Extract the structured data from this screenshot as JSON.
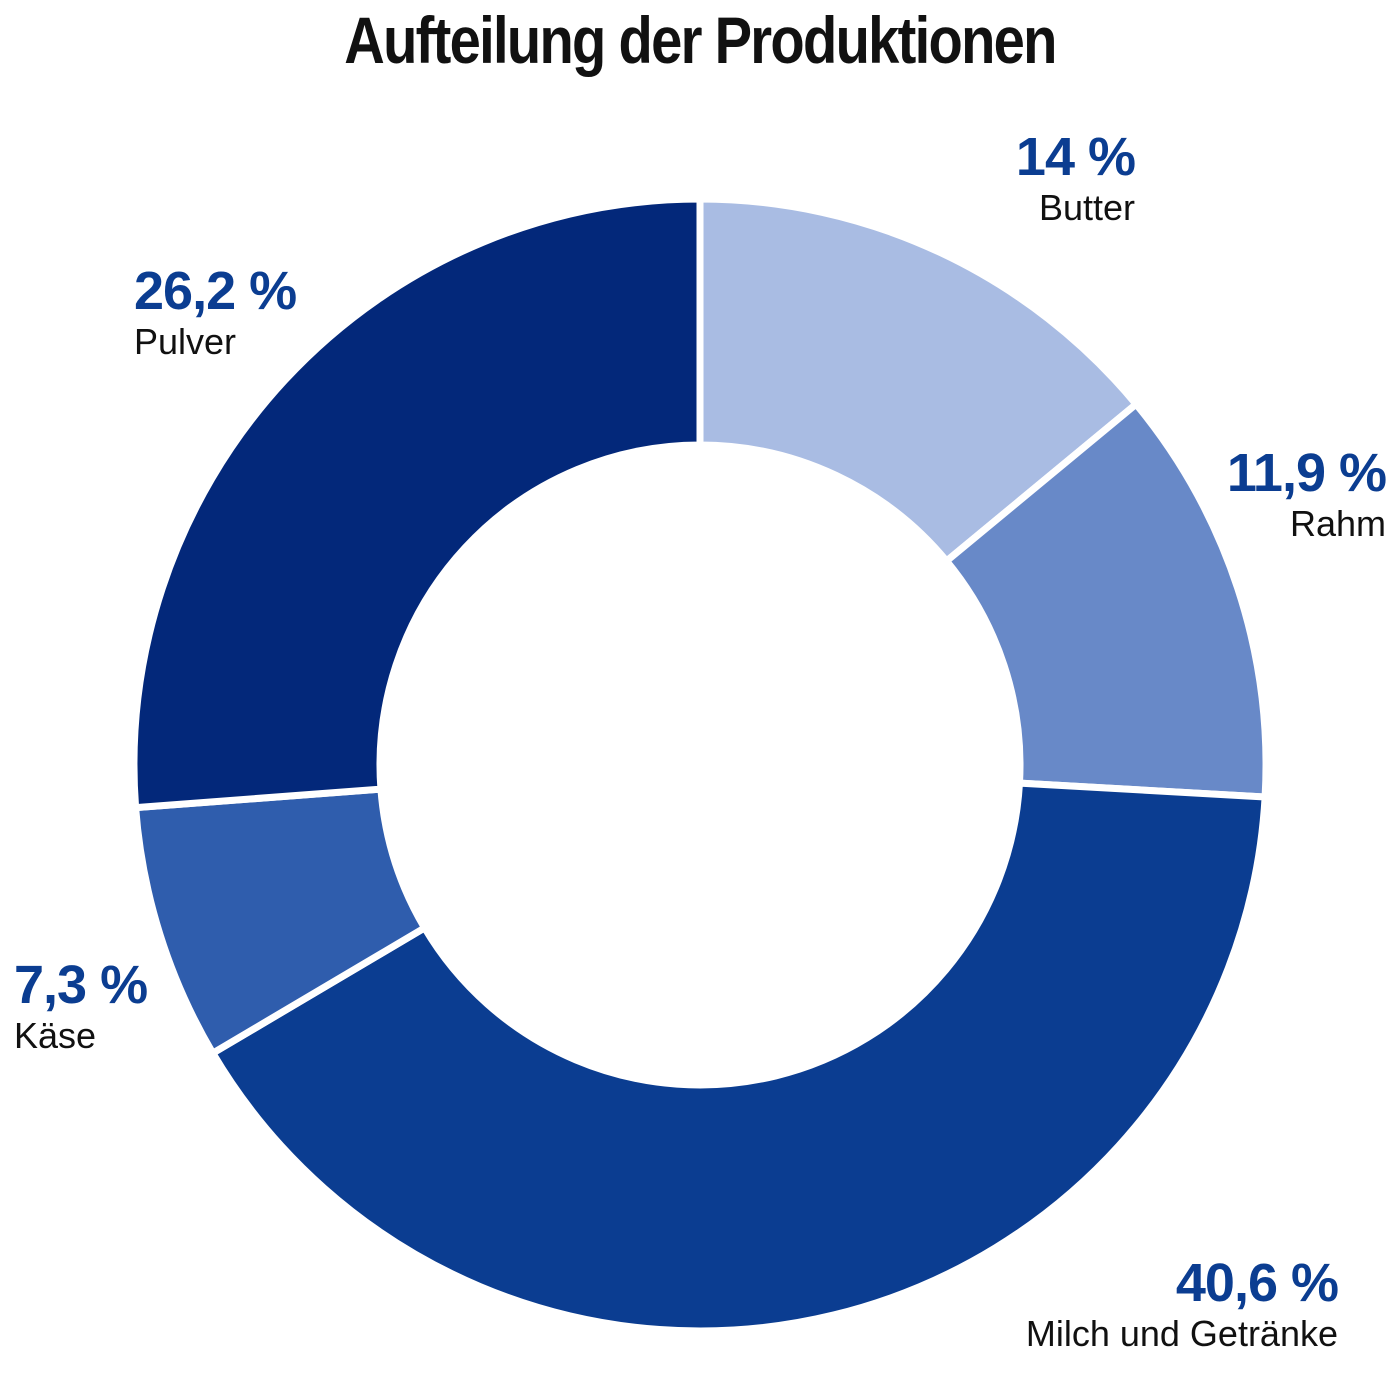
{
  "chart_data": {
    "type": "pie",
    "variant": "donut",
    "title": "Aufteilung der Produktionen",
    "categories": [
      "Butter",
      "Rahm",
      "Milch und Getränke",
      "Käse",
      "Pulver"
    ],
    "values": [
      14,
      11.9,
      40.6,
      7.3,
      26.2
    ],
    "value_labels": [
      "14 %",
      "11,9 %",
      "40,6 %",
      "7,3 %",
      "26,2 %"
    ],
    "colors": [
      "#a9bce3",
      "#6889c8",
      "#0b3d91",
      "#2f5dad",
      "#03287a"
    ],
    "start": "top",
    "direction": "clockwise",
    "legend": "none"
  }
}
